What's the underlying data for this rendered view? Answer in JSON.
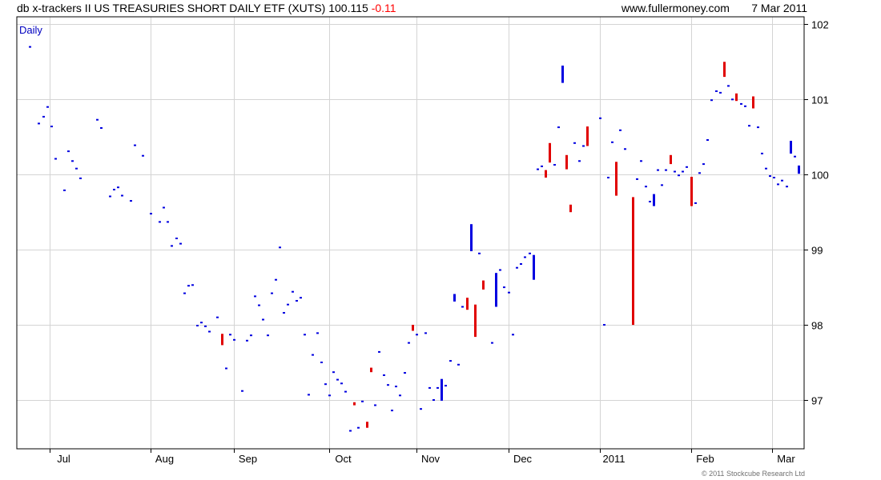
{
  "header": {
    "title": "db x-trackers II US TREASURIES SHORT DAILY ETF (XUTS)",
    "last": "100.115",
    "change": "-0.11",
    "site": "www.fullermoney.com",
    "date": "7 Mar 2011"
  },
  "copyright": "© 2011 Stockcube Research Ltd",
  "colors": {
    "up": "#0000e0",
    "down": "#e00000",
    "grid": "#d4d4d4",
    "frame": "#000000"
  },
  "chart_data": {
    "type": "ohlc",
    "period_label": "Daily",
    "ylim": [
      96.35,
      102.1
    ],
    "y_ticks": [
      "97",
      "98",
      "99",
      "100",
      "101",
      "102"
    ],
    "x_ticks": [
      "Jul",
      "Aug",
      "Sep",
      "Oct",
      "Nov",
      "Dec",
      "2011",
      "Feb",
      "Mar"
    ],
    "grid": true,
    "bars": [
      {
        "x": 37,
        "h": 101.7,
        "l": 101.7,
        "d": "up"
      },
      {
        "x": 48,
        "h": 100.68,
        "l": 100.68,
        "d": "up"
      },
      {
        "x": 54,
        "h": 100.77,
        "l": 100.77,
        "d": "up"
      },
      {
        "x": 59,
        "h": 100.9,
        "l": 100.9,
        "d": "up"
      },
      {
        "x": 64,
        "h": 100.64,
        "l": 100.64,
        "d": "up"
      },
      {
        "x": 69,
        "h": 100.21,
        "l": 100.21,
        "d": "up"
      },
      {
        "x": 80,
        "h": 99.79,
        "l": 99.79,
        "d": "up"
      },
      {
        "x": 85,
        "h": 100.31,
        "l": 100.31,
        "d": "up"
      },
      {
        "x": 90,
        "h": 100.18,
        "l": 100.18,
        "d": "up"
      },
      {
        "x": 95,
        "h": 100.08,
        "l": 100.08,
        "d": "up"
      },
      {
        "x": 100,
        "h": 99.95,
        "l": 99.95,
        "d": "up"
      },
      {
        "x": 121,
        "h": 100.73,
        "l": 100.73,
        "d": "up"
      },
      {
        "x": 126,
        "h": 100.62,
        "l": 100.62,
        "d": "up"
      },
      {
        "x": 137,
        "h": 99.71,
        "l": 99.71,
        "d": "up"
      },
      {
        "x": 142,
        "h": 99.8,
        "l": 99.8,
        "d": "up"
      },
      {
        "x": 147,
        "h": 99.83,
        "l": 99.83,
        "d": "up"
      },
      {
        "x": 152,
        "h": 99.72,
        "l": 99.72,
        "d": "up"
      },
      {
        "x": 163,
        "h": 99.65,
        "l": 99.65,
        "d": "up"
      },
      {
        "x": 168,
        "h": 100.39,
        "l": 100.39,
        "d": "up"
      },
      {
        "x": 178,
        "h": 100.25,
        "l": 100.25,
        "d": "up"
      },
      {
        "x": 188,
        "h": 99.48,
        "l": 99.48,
        "d": "up"
      },
      {
        "x": 199,
        "h": 99.37,
        "l": 99.37,
        "d": "up"
      },
      {
        "x": 204,
        "h": 99.56,
        "l": 99.56,
        "d": "up"
      },
      {
        "x": 209,
        "h": 99.37,
        "l": 99.37,
        "d": "up"
      },
      {
        "x": 214,
        "h": 99.05,
        "l": 99.05,
        "d": "up"
      },
      {
        "x": 220,
        "h": 99.15,
        "l": 99.15,
        "d": "up"
      },
      {
        "x": 225,
        "h": 99.08,
        "l": 99.08,
        "d": "up"
      },
      {
        "x": 230,
        "h": 98.42,
        "l": 98.42,
        "d": "up"
      },
      {
        "x": 235,
        "h": 98.52,
        "l": 98.52,
        "d": "up"
      },
      {
        "x": 240,
        "h": 98.53,
        "l": 98.53,
        "d": "up"
      },
      {
        "x": 246,
        "h": 97.99,
        "l": 97.99,
        "d": "up"
      },
      {
        "x": 251,
        "h": 98.03,
        "l": 98.03,
        "d": "up"
      },
      {
        "x": 256,
        "h": 97.98,
        "l": 97.98,
        "d": "up"
      },
      {
        "x": 261,
        "h": 97.91,
        "l": 97.91,
        "d": "up"
      },
      {
        "x": 271,
        "h": 98.1,
        "l": 98.1,
        "d": "up"
      },
      {
        "x": 277,
        "h": 97.88,
        "l": 97.73,
        "d": "down"
      },
      {
        "x": 282,
        "h": 97.42,
        "l": 97.42,
        "d": "up"
      },
      {
        "x": 287,
        "h": 97.87,
        "l": 97.87,
        "d": "up"
      },
      {
        "x": 292,
        "h": 97.8,
        "l": 97.8,
        "d": "up"
      },
      {
        "x": 302,
        "h": 97.12,
        "l": 97.12,
        "d": "up"
      },
      {
        "x": 308,
        "h": 97.79,
        "l": 97.79,
        "d": "up"
      },
      {
        "x": 313,
        "h": 97.86,
        "l": 97.86,
        "d": "up"
      },
      {
        "x": 318,
        "h": 98.38,
        "l": 98.38,
        "d": "up"
      },
      {
        "x": 323,
        "h": 98.26,
        "l": 98.26,
        "d": "up"
      },
      {
        "x": 328,
        "h": 98.07,
        "l": 98.07,
        "d": "up"
      },
      {
        "x": 334,
        "h": 97.86,
        "l": 97.86,
        "d": "up"
      },
      {
        "x": 339,
        "h": 98.42,
        "l": 98.42,
        "d": "up"
      },
      {
        "x": 344,
        "h": 98.6,
        "l": 98.6,
        "d": "up"
      },
      {
        "x": 349,
        "h": 99.03,
        "l": 99.03,
        "d": "up"
      },
      {
        "x": 354,
        "h": 98.16,
        "l": 98.16,
        "d": "up"
      },
      {
        "x": 359,
        "h": 98.27,
        "l": 98.27,
        "d": "up"
      },
      {
        "x": 365,
        "h": 98.44,
        "l": 98.44,
        "d": "up"
      },
      {
        "x": 370,
        "h": 98.32,
        "l": 98.32,
        "d": "up"
      },
      {
        "x": 375,
        "h": 98.36,
        "l": 98.36,
        "d": "up"
      },
      {
        "x": 380,
        "h": 97.87,
        "l": 97.87,
        "d": "up"
      },
      {
        "x": 385,
        "h": 97.07,
        "l": 97.07,
        "d": "up"
      },
      {
        "x": 390,
        "h": 97.6,
        "l": 97.6,
        "d": "up"
      },
      {
        "x": 396,
        "h": 97.89,
        "l": 97.89,
        "d": "up"
      },
      {
        "x": 401,
        "h": 97.5,
        "l": 97.5,
        "d": "up"
      },
      {
        "x": 406,
        "h": 97.21,
        "l": 97.21,
        "d": "up"
      },
      {
        "x": 411,
        "h": 97.06,
        "l": 97.06,
        "d": "up"
      },
      {
        "x": 416,
        "h": 97.37,
        "l": 97.37,
        "d": "up"
      },
      {
        "x": 421,
        "h": 97.27,
        "l": 97.27,
        "d": "up"
      },
      {
        "x": 426,
        "h": 97.22,
        "l": 97.22,
        "d": "up"
      },
      {
        "x": 431,
        "h": 97.11,
        "l": 97.11,
        "d": "up"
      },
      {
        "x": 437,
        "h": 96.59,
        "l": 96.59,
        "d": "up"
      },
      {
        "x": 442,
        "h": 96.97,
        "l": 96.93,
        "d": "down"
      },
      {
        "x": 447,
        "h": 96.63,
        "l": 96.63,
        "d": "up"
      },
      {
        "x": 452,
        "h": 96.98,
        "l": 96.98,
        "d": "up"
      },
      {
        "x": 458,
        "h": 96.71,
        "l": 96.63,
        "d": "down"
      },
      {
        "x": 463,
        "h": 97.43,
        "l": 97.37,
        "d": "down"
      },
      {
        "x": 468,
        "h": 96.93,
        "l": 96.93,
        "d": "up"
      },
      {
        "x": 473,
        "h": 97.64,
        "l": 97.64,
        "d": "up"
      },
      {
        "x": 479,
        "h": 97.33,
        "l": 97.33,
        "d": "up"
      },
      {
        "x": 484,
        "h": 97.2,
        "l": 97.2,
        "d": "up"
      },
      {
        "x": 489,
        "h": 96.86,
        "l": 96.86,
        "d": "up"
      },
      {
        "x": 494,
        "h": 97.18,
        "l": 97.18,
        "d": "up"
      },
      {
        "x": 499,
        "h": 97.06,
        "l": 97.06,
        "d": "up"
      },
      {
        "x": 505,
        "h": 97.36,
        "l": 97.36,
        "d": "up"
      },
      {
        "x": 510,
        "h": 97.76,
        "l": 97.76,
        "d": "up"
      },
      {
        "x": 515,
        "h": 98.0,
        "l": 97.92,
        "d": "down"
      },
      {
        "x": 520,
        "h": 97.87,
        "l": 97.87,
        "d": "up"
      },
      {
        "x": 525,
        "h": 96.88,
        "l": 96.88,
        "d": "up"
      },
      {
        "x": 531,
        "h": 97.89,
        "l": 97.89,
        "d": "up"
      },
      {
        "x": 536,
        "h": 97.16,
        "l": 97.16,
        "d": "up"
      },
      {
        "x": 541,
        "h": 97.0,
        "l": 97.0,
        "d": "up"
      },
      {
        "x": 546,
        "h": 97.16,
        "l": 97.16,
        "d": "up"
      },
      {
        "x": 551,
        "h": 97.28,
        "l": 96.99,
        "d": "up"
      },
      {
        "x": 556,
        "h": 97.19,
        "l": 97.19,
        "d": "up"
      },
      {
        "x": 562,
        "h": 97.52,
        "l": 97.52,
        "d": "up"
      },
      {
        "x": 567,
        "h": 98.41,
        "l": 98.31,
        "d": "up"
      },
      {
        "x": 572,
        "h": 97.47,
        "l": 97.47,
        "d": "up"
      },
      {
        "x": 577,
        "h": 98.24,
        "l": 98.24,
        "d": "up"
      },
      {
        "x": 583,
        "h": 98.36,
        "l": 98.2,
        "d": "down"
      },
      {
        "x": 588,
        "h": 99.34,
        "l": 98.98,
        "d": "up"
      },
      {
        "x": 593,
        "h": 98.27,
        "l": 97.84,
        "d": "down"
      },
      {
        "x": 598,
        "h": 98.95,
        "l": 98.95,
        "d": "up"
      },
      {
        "x": 603,
        "h": 98.59,
        "l": 98.47,
        "d": "down"
      },
      {
        "x": 614,
        "h": 97.76,
        "l": 97.76,
        "d": "up"
      },
      {
        "x": 619,
        "h": 98.69,
        "l": 98.24,
        "d": "up"
      },
      {
        "x": 624,
        "h": 98.73,
        "l": 98.73,
        "d": "up"
      },
      {
        "x": 629,
        "h": 98.5,
        "l": 98.5,
        "d": "up"
      },
      {
        "x": 635,
        "h": 98.43,
        "l": 98.43,
        "d": "up"
      },
      {
        "x": 640,
        "h": 97.87,
        "l": 97.87,
        "d": "up"
      },
      {
        "x": 645,
        "h": 98.76,
        "l": 98.76,
        "d": "up"
      },
      {
        "x": 650,
        "h": 98.81,
        "l": 98.81,
        "d": "up"
      },
      {
        "x": 655,
        "h": 98.9,
        "l": 98.9,
        "d": "up"
      },
      {
        "x": 661,
        "h": 98.95,
        "l": 98.95,
        "d": "up"
      },
      {
        "x": 666,
        "h": 98.93,
        "l": 98.6,
        "d": "up"
      },
      {
        "x": 671,
        "h": 100.07,
        "l": 100.07,
        "d": "up"
      },
      {
        "x": 676,
        "h": 100.11,
        "l": 100.11,
        "d": "up"
      },
      {
        "x": 681,
        "h": 100.06,
        "l": 99.96,
        "d": "down"
      },
      {
        "x": 686,
        "h": 100.42,
        "l": 100.16,
        "d": "down"
      },
      {
        "x": 692,
        "h": 100.13,
        "l": 100.13,
        "d": "up"
      },
      {
        "x": 697,
        "h": 100.63,
        "l": 100.63,
        "d": "up"
      },
      {
        "x": 702,
        "h": 101.45,
        "l": 101.22,
        "d": "up"
      },
      {
        "x": 707,
        "h": 100.26,
        "l": 100.07,
        "d": "down"
      },
      {
        "x": 712,
        "h": 99.6,
        "l": 99.5,
        "d": "down"
      },
      {
        "x": 717,
        "h": 100.42,
        "l": 100.42,
        "d": "up"
      },
      {
        "x": 723,
        "h": 100.18,
        "l": 100.18,
        "d": "up"
      },
      {
        "x": 728,
        "h": 100.38,
        "l": 100.38,
        "d": "up"
      },
      {
        "x": 733,
        "h": 100.64,
        "l": 100.38,
        "d": "down"
      },
      {
        "x": 749,
        "h": 100.75,
        "l": 100.75,
        "d": "up"
      },
      {
        "x": 754,
        "h": 98.0,
        "l": 98.0,
        "d": "up"
      },
      {
        "x": 759,
        "h": 99.96,
        "l": 99.96,
        "d": "up"
      },
      {
        "x": 764,
        "h": 100.43,
        "l": 100.43,
        "d": "up"
      },
      {
        "x": 769,
        "h": 100.17,
        "l": 99.72,
        "d": "down"
      },
      {
        "x": 774,
        "h": 100.59,
        "l": 100.59,
        "d": "up"
      },
      {
        "x": 780,
        "h": 100.34,
        "l": 100.34,
        "d": "up"
      },
      {
        "x": 790,
        "h": 99.7,
        "l": 98.0,
        "d": "down"
      },
      {
        "x": 795,
        "h": 99.94,
        "l": 99.94,
        "d": "up"
      },
      {
        "x": 800,
        "h": 100.18,
        "l": 100.18,
        "d": "up"
      },
      {
        "x": 806,
        "h": 99.84,
        "l": 99.84,
        "d": "up"
      },
      {
        "x": 811,
        "h": 99.64,
        "l": 99.64,
        "d": "up"
      },
      {
        "x": 816,
        "h": 99.74,
        "l": 99.58,
        "d": "up"
      },
      {
        "x": 821,
        "h": 100.06,
        "l": 100.06,
        "d": "up"
      },
      {
        "x": 826,
        "h": 99.86,
        "l": 99.86,
        "d": "up"
      },
      {
        "x": 831,
        "h": 100.06,
        "l": 100.06,
        "d": "up"
      },
      {
        "x": 837,
        "h": 100.26,
        "l": 100.14,
        "d": "down"
      },
      {
        "x": 842,
        "h": 100.04,
        "l": 100.04,
        "d": "up"
      },
      {
        "x": 847,
        "h": 99.99,
        "l": 99.99,
        "d": "up"
      },
      {
        "x": 852,
        "h": 100.04,
        "l": 100.04,
        "d": "up"
      },
      {
        "x": 857,
        "h": 100.1,
        "l": 100.1,
        "d": "up"
      },
      {
        "x": 863,
        "h": 99.97,
        "l": 99.58,
        "d": "down"
      },
      {
        "x": 868,
        "h": 99.62,
        "l": 99.62,
        "d": "up"
      },
      {
        "x": 873,
        "h": 100.02,
        "l": 100.02,
        "d": "up"
      },
      {
        "x": 878,
        "h": 100.14,
        "l": 100.14,
        "d": "up"
      },
      {
        "x": 883,
        "h": 100.46,
        "l": 100.46,
        "d": "up"
      },
      {
        "x": 888,
        "h": 100.99,
        "l": 100.99,
        "d": "up"
      },
      {
        "x": 894,
        "h": 101.11,
        "l": 101.11,
        "d": "up"
      },
      {
        "x": 899,
        "h": 101.09,
        "l": 101.09,
        "d": "up"
      },
      {
        "x": 904,
        "h": 101.5,
        "l": 101.3,
        "d": "down"
      },
      {
        "x": 909,
        "h": 101.18,
        "l": 101.18,
        "d": "up"
      },
      {
        "x": 914,
        "h": 101.0,
        "l": 101.0,
        "d": "up"
      },
      {
        "x": 919,
        "h": 101.08,
        "l": 100.98,
        "d": "down"
      },
      {
        "x": 925,
        "h": 100.94,
        "l": 100.94,
        "d": "up"
      },
      {
        "x": 930,
        "h": 100.91,
        "l": 100.91,
        "d": "up"
      },
      {
        "x": 935,
        "h": 100.65,
        "l": 100.65,
        "d": "up"
      },
      {
        "x": 940,
        "h": 101.04,
        "l": 100.88,
        "d": "down"
      },
      {
        "x": 946,
        "h": 100.63,
        "l": 100.63,
        "d": "up"
      },
      {
        "x": 951,
        "h": 100.28,
        "l": 100.28,
        "d": "up"
      },
      {
        "x": 956,
        "h": 100.08,
        "l": 100.08,
        "d": "up"
      },
      {
        "x": 961,
        "h": 99.98,
        "l": 99.98,
        "d": "up"
      },
      {
        "x": 966,
        "h": 99.96,
        "l": 99.96,
        "d": "up"
      },
      {
        "x": 971,
        "h": 99.87,
        "l": 99.87,
        "d": "up"
      },
      {
        "x": 976,
        "h": 99.92,
        "l": 99.92,
        "d": "up"
      },
      {
        "x": 982,
        "h": 99.84,
        "l": 99.84,
        "d": "up"
      },
      {
        "x": 987,
        "h": 100.45,
        "l": 100.28,
        "d": "up"
      },
      {
        "x": 992,
        "h": 100.24,
        "l": 100.24,
        "d": "up"
      },
      {
        "x": 997,
        "h": 100.12,
        "l": 100.01,
        "d": "up"
      }
    ]
  }
}
